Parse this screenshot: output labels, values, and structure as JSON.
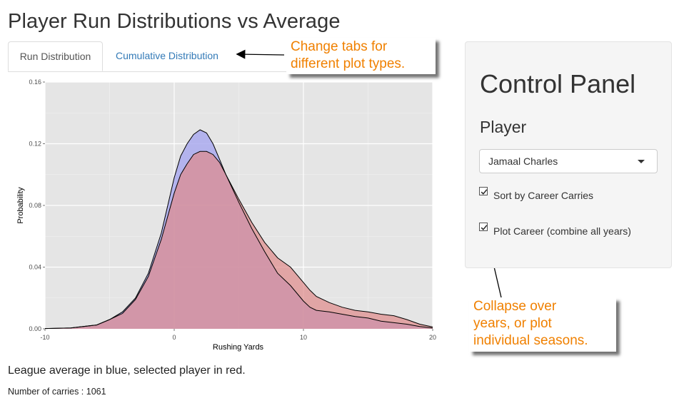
{
  "page": {
    "title": "Player Run Distributions vs Average"
  },
  "tabs": [
    {
      "label": "Run Distribution",
      "active": true
    },
    {
      "label": "Cumulative Distribution",
      "active": false
    }
  ],
  "callouts": {
    "tabs": [
      "Change tabs for",
      "different plot types."
    ],
    "collapse": [
      "Collapse over",
      "years, or plot",
      "individual seasons."
    ]
  },
  "plot": {
    "xlabel": "Rushing Yards",
    "ylabel": "Probability",
    "x_ticks": [
      "-10",
      "0",
      "10",
      "20"
    ],
    "y_ticks": [
      "0.00",
      "0.04",
      "0.08",
      "0.12",
      "0.16"
    ],
    "colors": {
      "league_fill": "#aaaaee",
      "player_fill": "#e08a8a",
      "overlap_fill": "#c895bb",
      "panel_bg": "#e5e5e5"
    }
  },
  "chart_data": {
    "type": "area",
    "xlabel": "Rushing Yards",
    "ylabel": "Probability",
    "xlim": [
      -10,
      20
    ],
    "ylim": [
      0,
      0.16
    ],
    "grid": true,
    "series": [
      {
        "name": "League average",
        "color": "blue",
        "x": [
          -10,
          -8,
          -6,
          -5,
          -4,
          -3,
          -2,
          -1,
          0,
          0.5,
          1,
          1.5,
          2,
          2.5,
          3,
          3.5,
          4,
          5,
          6,
          7,
          8,
          9,
          10,
          10.5,
          11,
          12,
          13,
          14,
          15,
          16,
          17,
          18,
          19,
          20
        ],
        "y": [
          0.0002,
          0.0006,
          0.0025,
          0.006,
          0.011,
          0.02,
          0.036,
          0.062,
          0.098,
          0.112,
          0.12,
          0.126,
          0.129,
          0.127,
          0.12,
          0.11,
          0.1,
          0.082,
          0.065,
          0.05,
          0.036,
          0.028,
          0.018,
          0.014,
          0.012,
          0.011,
          0.0095,
          0.008,
          0.007,
          0.005,
          0.004,
          0.003,
          0.0015,
          0.0005
        ]
      },
      {
        "name": "Selected player",
        "color": "red",
        "x": [
          -10,
          -8,
          -6,
          -5,
          -4,
          -3,
          -2,
          -1,
          0,
          0.5,
          1,
          1.5,
          2,
          2.5,
          3,
          3.5,
          4,
          5,
          6,
          7,
          8,
          9,
          10,
          10.5,
          11,
          12,
          13,
          14,
          15,
          16,
          17,
          18,
          19,
          20
        ],
        "y": [
          0.0002,
          0.0006,
          0.0025,
          0.006,
          0.01,
          0.019,
          0.034,
          0.058,
          0.088,
          0.1,
          0.107,
          0.113,
          0.115,
          0.115,
          0.113,
          0.108,
          0.1,
          0.084,
          0.069,
          0.056,
          0.046,
          0.04,
          0.03,
          0.025,
          0.021,
          0.017,
          0.014,
          0.012,
          0.011,
          0.0095,
          0.0085,
          0.006,
          0.003,
          0.0012
        ]
      }
    ]
  },
  "caption": "League average in blue, selected player in red.",
  "carries": "Number of carries : 1061",
  "panel": {
    "title": "Control Panel",
    "player_label": "Player",
    "player_value": "Jamaal Charles",
    "checks": [
      {
        "label": "Sort by Career Carries",
        "checked": true
      },
      {
        "label": "Plot Career (combine all years)",
        "checked": true
      }
    ]
  }
}
